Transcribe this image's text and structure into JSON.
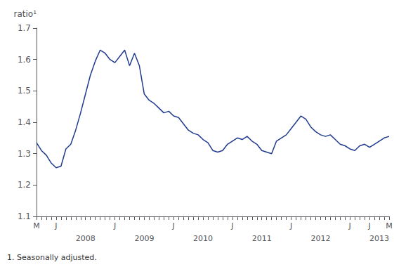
{
  "chart_data": {
    "type": "line",
    "ylabel": "ratio¹",
    "footnote": "1. Seasonally adjusted.",
    "categories": [
      "M",
      null,
      null,
      null,
      "J",
      null,
      null,
      null,
      null,
      null,
      null,
      null,
      null,
      null,
      null,
      null,
      "J",
      null,
      null,
      null,
      null,
      null,
      null,
      null,
      null,
      null,
      null,
      null,
      "J",
      null,
      null,
      null,
      null,
      null,
      null,
      null,
      null,
      null,
      null,
      null,
      "J",
      null,
      null,
      null,
      null,
      null,
      null,
      null,
      null,
      null,
      null,
      null,
      "J",
      null,
      null,
      null,
      null,
      null,
      null,
      null,
      null,
      null,
      null,
      null,
      "J",
      null,
      null,
      null,
      "J",
      null,
      null,
      null,
      "M"
    ],
    "values": [
      1.335,
      1.31,
      1.295,
      1.27,
      1.255,
      1.26,
      1.315,
      1.33,
      1.375,
      1.43,
      1.49,
      1.55,
      1.595,
      1.63,
      1.62,
      1.6,
      1.59,
      1.61,
      1.63,
      1.58,
      1.62,
      1.58,
      1.49,
      1.47,
      1.46,
      1.445,
      1.43,
      1.435,
      1.42,
      1.415,
      1.395,
      1.375,
      1.365,
      1.36,
      1.345,
      1.335,
      1.31,
      1.305,
      1.31,
      1.33,
      1.34,
      1.35,
      1.345,
      1.355,
      1.34,
      1.33,
      1.31,
      1.305,
      1.3,
      1.34,
      1.35,
      1.36,
      1.38,
      1.4,
      1.42,
      1.41,
      1.385,
      1.37,
      1.36,
      1.355,
      1.36,
      1.345,
      1.33,
      1.325,
      1.315,
      1.31,
      1.325,
      1.33,
      1.32,
      1.33,
      1.34,
      1.35,
      1.355
    ],
    "color": "#1f3a8f",
    "ylim": [
      1.1,
      1.7
    ],
    "yticks": [
      1.1,
      1.2,
      1.3,
      1.4,
      1.5,
      1.6,
      1.7
    ],
    "grid": false,
    "annotations": [
      {
        "text": "2008",
        "x": 10
      },
      {
        "text": "2009",
        "x": 22
      },
      {
        "text": "2010",
        "x": 34
      },
      {
        "text": "2011",
        "x": 46
      },
      {
        "text": "2012",
        "x": 58
      },
      {
        "text": "2013",
        "x": 70
      }
    ]
  }
}
